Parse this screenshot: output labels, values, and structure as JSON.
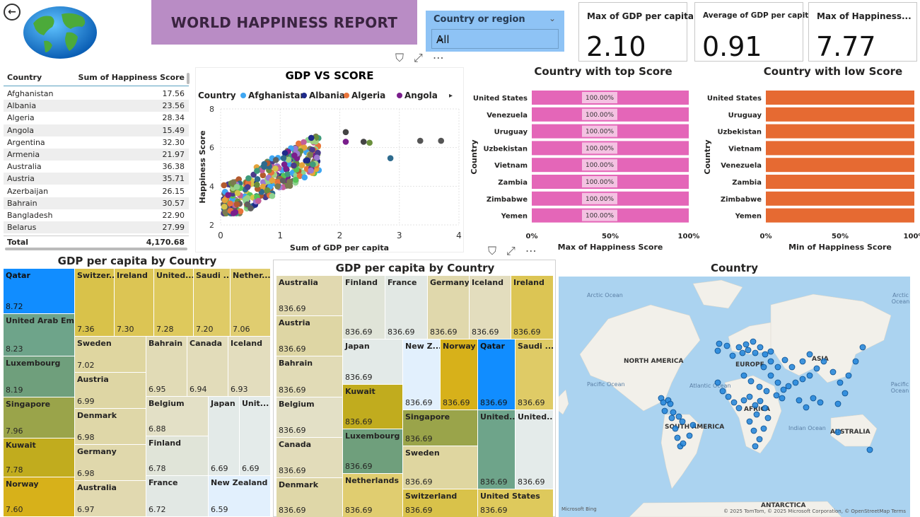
{
  "header": {
    "back_icon": "arrow-left-icon",
    "globe_icon": "globe-icon",
    "title": "WORLD HAPPINESS REPORT"
  },
  "slicer": {
    "label": "Country or region",
    "value": "All"
  },
  "cards": [
    {
      "title": "Max of GDP per capita",
      "value": "2.10"
    },
    {
      "title": "Average of GDP per capita",
      "value": "0.91"
    },
    {
      "title": "Max of Happiness...",
      "value": "7.77"
    }
  ],
  "table": {
    "col1": "Country",
    "col2": "Sum of Happiness Score",
    "rows": [
      {
        "country": "Afghanistan",
        "score": "17.56"
      },
      {
        "country": "Albania",
        "score": "23.56"
      },
      {
        "country": "Algeria",
        "score": "28.34"
      },
      {
        "country": "Angola",
        "score": "15.49"
      },
      {
        "country": "Argentina",
        "score": "32.30"
      },
      {
        "country": "Armenia",
        "score": "21.97"
      },
      {
        "country": "Australia",
        "score": "36.38"
      },
      {
        "country": "Austria",
        "score": "35.71"
      },
      {
        "country": "Azerbaijan",
        "score": "26.15"
      },
      {
        "country": "Bahrain",
        "score": "30.57"
      },
      {
        "country": "Bangladesh",
        "score": "22.90"
      },
      {
        "country": "Belarus",
        "score": "27.99"
      }
    ],
    "total_label": "Total",
    "total_value": "4,170.68"
  },
  "scatter": {
    "title": "GDP VS SCORE",
    "legend_title": "Country",
    "legend": [
      {
        "name": "Afghanistan",
        "color": "#3ea6f2"
      },
      {
        "name": "Albania",
        "color": "#1f2a8a"
      },
      {
        "name": "Algeria",
        "color": "#e8743b"
      },
      {
        "name": "Angola",
        "color": "#7a1e8c"
      }
    ],
    "xlabel": "Sum of GDP per capita",
    "ylabel": "Happiness Score",
    "xticks": [
      "0",
      "1",
      "2",
      "3",
      "4"
    ],
    "yticks": [
      "2",
      "4",
      "6",
      "8"
    ]
  },
  "bar_top": {
    "title": "Country with top Score",
    "ylabel": "Country",
    "xlabel": "Max of Happiness Score",
    "color": "#e466b8",
    "xticks": [
      "0%",
      "50%",
      "100%"
    ],
    "bar_label": "100.00%",
    "categories": [
      "United States",
      "Venezuela",
      "Uruguay",
      "Uzbekistan",
      "Vietnam",
      "Zambia",
      "Zimbabwe",
      "Yemen"
    ]
  },
  "bar_low": {
    "title": "Country with low Score",
    "ylabel": "Country",
    "xlabel": "Min of Happiness Score",
    "color": "#e66a32",
    "xticks": [
      "0%",
      "50%",
      "100%"
    ],
    "categories": [
      "United States",
      "Uruguay",
      "Uzbekistan",
      "Vietnam",
      "Venezuela",
      "Zambia",
      "Zimbabwe",
      "Yemen"
    ]
  },
  "treemap1": {
    "title": "GDP per capita by Country",
    "tiles": [
      {
        "name": "Qatar",
        "value": "8.72",
        "color": "#118dff"
      },
      {
        "name": "United Arab Em...",
        "value": "8.23",
        "color": "#6ea48a"
      },
      {
        "name": "Luxembourg",
        "value": "8.19",
        "color": "#6f9f7c"
      },
      {
        "name": "Singapore",
        "value": "7.96",
        "color": "#9aa44a"
      },
      {
        "name": "Kuwait",
        "value": "7.78",
        "color": "#c1ac1e"
      },
      {
        "name": "Norway",
        "value": "7.60",
        "color": "#d7b11a"
      },
      {
        "name": "Switzer...",
        "value": "7.36",
        "color": "#d9c24a"
      },
      {
        "name": "Ireland",
        "value": "7.30",
        "color": "#dcc554"
      },
      {
        "name": "United...",
        "value": "7.28",
        "color": "#dec95c"
      },
      {
        "name": "Saudi ...",
        "value": "7.20",
        "color": "#dfcb66"
      },
      {
        "name": "Nether...",
        "value": "7.06",
        "color": "#e0cd70"
      },
      {
        "name": "Sweden",
        "value": "7.02",
        "color": "#dfd6a0"
      },
      {
        "name": "Austria",
        "value": "6.99",
        "color": "#ded6a4"
      },
      {
        "name": "Denmark",
        "value": "6.98",
        "color": "#dfd7a8"
      },
      {
        "name": "Germany",
        "value": "6.98",
        "color": "#e0d8ac"
      },
      {
        "name": "Australia",
        "value": "6.97",
        "color": "#e1d9b0"
      },
      {
        "name": "Bahrain",
        "value": "6.95",
        "color": "#e1dbb6"
      },
      {
        "name": "Canada",
        "value": "6.94",
        "color": "#e2dcba"
      },
      {
        "name": "Iceland",
        "value": "6.93",
        "color": "#e3ddbe"
      },
      {
        "name": "Belgium",
        "value": "6.88",
        "color": "#e3e0c6"
      },
      {
        "name": "Finland",
        "value": "6.78",
        "color": "#e0e4d8"
      },
      {
        "name": "France",
        "value": "6.72",
        "color": "#e2e8e4"
      },
      {
        "name": "Japan",
        "value": "6.69",
        "color": "#e3eae8"
      },
      {
        "name": "Unit...",
        "value": "6.69",
        "color": "#e4ebea"
      },
      {
        "name": "New Zealand",
        "value": "6.59",
        "color": "#e2f0fd"
      }
    ]
  },
  "treemap2": {
    "title": "GDP per capita by Country",
    "tiles": [
      {
        "name": "Australia",
        "value": "836.69",
        "color": "#e1d9b0"
      },
      {
        "name": "Austria",
        "value": "836.69",
        "color": "#ded6a4"
      },
      {
        "name": "Bahrain",
        "value": "836.69",
        "color": "#e1dbb6"
      },
      {
        "name": "Belgium",
        "value": "836.69",
        "color": "#e3e0c6"
      },
      {
        "name": "Canada",
        "value": "836.69",
        "color": "#e2dcba"
      },
      {
        "name": "Denmark",
        "value": "836.69",
        "color": "#dfd7a8"
      },
      {
        "name": "Finland",
        "value": "836.69",
        "color": "#e0e4d8"
      },
      {
        "name": "France",
        "value": "836.69",
        "color": "#e2e8e4"
      },
      {
        "name": "Germany",
        "value": "836.69",
        "color": "#e0d8ac"
      },
      {
        "name": "Iceland",
        "value": "836.69",
        "color": "#e3ddbe"
      },
      {
        "name": "Ireland",
        "value": "836.69",
        "color": "#dcc554"
      },
      {
        "name": "Japan",
        "value": "836.69",
        "color": "#e3eae8"
      },
      {
        "name": "New Z...",
        "value": "836.69",
        "color": "#e2f0fd"
      },
      {
        "name": "Norway",
        "value": "836.69",
        "color": "#d7b11a"
      },
      {
        "name": "Qatar",
        "value": "836.69",
        "color": "#118dff"
      },
      {
        "name": "Saudi ...",
        "value": "836.69",
        "color": "#dfcb66"
      },
      {
        "name": "Kuwait",
        "value": "836.69",
        "color": "#c1ac1e"
      },
      {
        "name": "Singapore",
        "value": "836.69",
        "color": "#9aa44a"
      },
      {
        "name": "United...",
        "value": "836.69",
        "color": "#6ea48a"
      },
      {
        "name": "United...",
        "value": "836.69",
        "color": "#e4ebea"
      },
      {
        "name": "Luxembourg",
        "value": "836.69",
        "color": "#6f9f7c"
      },
      {
        "name": "Sweden",
        "value": "836.69",
        "color": "#dfd6a0"
      },
      {
        "name": "Netherlands",
        "value": "836.69",
        "color": "#e0cd70"
      },
      {
        "name": "Switzerland",
        "value": "836.69",
        "color": "#d9c24a"
      },
      {
        "name": "United States",
        "value": "836.69",
        "color": "#dec95c"
      }
    ]
  },
  "map": {
    "title": "Country",
    "labels": [
      "NORTH AMERICA",
      "SOUTH AMERICA",
      "EUROPE",
      "AFRICA",
      "ASIA",
      "AUSTRALIA",
      "ANTARCTICA"
    ],
    "oceans": [
      "Arctic Ocean",
      "Arctic Ocean",
      "Pacific Ocean",
      "Atlantic Ocean",
      "Pacific Ocean",
      "Indian Ocean"
    ],
    "attribution": "© 2025 TomTom, © 2025 Microsoft Corporation, © OpenStreetMap Terms",
    "bing": "Microsoft Bing"
  }
}
